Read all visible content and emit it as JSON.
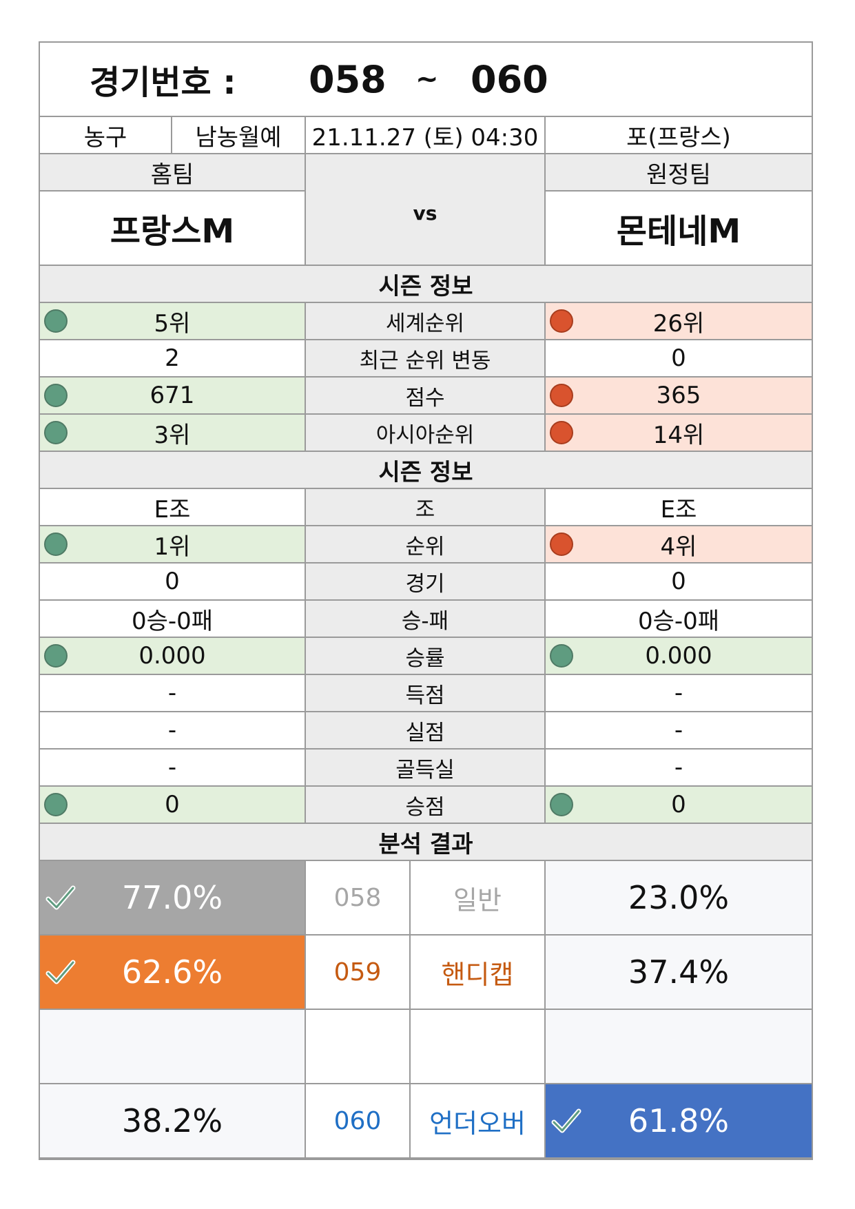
{
  "header": {
    "label": "경기번호 :",
    "from": "058",
    "tilde": "~",
    "to": "060"
  },
  "info": {
    "sport": "농구",
    "league": "남농월예",
    "datetime": "21.11.27 (토) 04:30",
    "venue": "포(프랑스)"
  },
  "teams": {
    "home_label": "홈팀",
    "away_label": "원정팀",
    "home": "프랑스M",
    "away": "몬테네M",
    "vs": "vs"
  },
  "section1": "시즌 정보",
  "season_rows": [
    {
      "label": "세계순위",
      "home": "5위",
      "away": "26위",
      "home_mark": "green",
      "away_mark": "red"
    },
    {
      "label": "최근 순위 변동",
      "home": "2",
      "away": "0",
      "home_mark": "none",
      "away_mark": "none"
    },
    {
      "label": "점수",
      "home": "671",
      "away": "365",
      "home_mark": "green",
      "away_mark": "red"
    },
    {
      "label": "아시아순위",
      "home": "3위",
      "away": "14위",
      "home_mark": "green",
      "away_mark": "red"
    }
  ],
  "section2": "시즌 정보",
  "group_rows": [
    {
      "label": "조",
      "home": "E조",
      "away": "E조",
      "home_mark": "none",
      "away_mark": "none"
    },
    {
      "label": "순위",
      "home": "1위",
      "away": "4위",
      "home_mark": "green",
      "away_mark": "red"
    },
    {
      "label": "경기",
      "home": "0",
      "away": "0",
      "home_mark": "none",
      "away_mark": "none"
    },
    {
      "label": "승-패",
      "home": "0승-0패",
      "away": "0승-0패",
      "home_mark": "none",
      "away_mark": "none"
    },
    {
      "label": "승률",
      "home": "0.000",
      "away": "0.000",
      "home_mark": "green",
      "away_mark": "green"
    },
    {
      "label": "득점",
      "home": "-",
      "away": "-",
      "home_mark": "none",
      "away_mark": "none"
    },
    {
      "label": "실점",
      "home": "-",
      "away": "-",
      "home_mark": "none",
      "away_mark": "none"
    },
    {
      "label": "골득실",
      "home": "-",
      "away": "-",
      "home_mark": "none",
      "away_mark": "none"
    },
    {
      "label": "승점",
      "home": "0",
      "away": "0",
      "home_mark": "green",
      "away_mark": "green"
    }
  ],
  "section3": "분석 결과",
  "analysis": [
    {
      "home": "77.0%",
      "num": "058",
      "type": "일반",
      "away": "23.0%",
      "pick": "home",
      "color": "#a6a6a6",
      "text_color": "#a6a6a6"
    },
    {
      "home": "62.6%",
      "num": "059",
      "type": "핸디캡",
      "away": "37.4%",
      "pick": "home",
      "color": "#ed7d31",
      "text_color": "#c55a11"
    },
    {
      "home": "",
      "num": "",
      "type": "",
      "away": "",
      "pick": "none",
      "color": "#ffffff",
      "text_color": "#111111"
    },
    {
      "home": "38.2%",
      "num": "060",
      "type": "언더오버",
      "away": "61.8%",
      "pick": "away",
      "color": "#4472c4",
      "text_color": "#1f6fc5"
    }
  ]
}
